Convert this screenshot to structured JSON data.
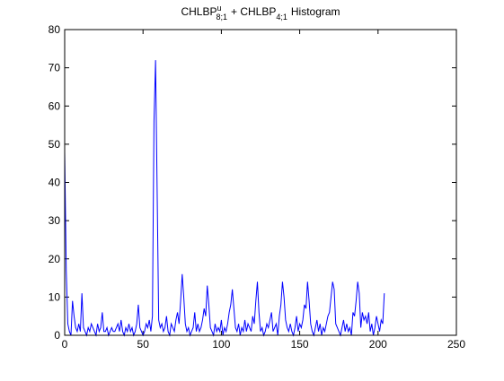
{
  "chart_data": {
    "type": "line",
    "title": [
      "CHLBP",
      "u",
      "8;1",
      "+ CHLBP",
      "4;1",
      "Histogram"
    ],
    "x": [
      0,
      1,
      2,
      3,
      4,
      5,
      6,
      7,
      8,
      9,
      10,
      11,
      12,
      13,
      14,
      15,
      16,
      17,
      18,
      19,
      20,
      21,
      22,
      23,
      24,
      25,
      26,
      27,
      28,
      29,
      30,
      31,
      32,
      33,
      34,
      35,
      36,
      37,
      38,
      39,
      40,
      41,
      42,
      43,
      44,
      45,
      46,
      47,
      48,
      49,
      50,
      51,
      52,
      53,
      54,
      55,
      56,
      57,
      58,
      59,
      60,
      61,
      62,
      63,
      64,
      65,
      66,
      67,
      68,
      69,
      70,
      71,
      72,
      73,
      74,
      75,
      76,
      77,
      78,
      79,
      80,
      81,
      82,
      83,
      84,
      85,
      86,
      87,
      88,
      89,
      90,
      91,
      92,
      93,
      94,
      95,
      96,
      97,
      98,
      99,
      100,
      101,
      102,
      103,
      104,
      105,
      106,
      107,
      108,
      109,
      110,
      111,
      112,
      113,
      114,
      115,
      116,
      117,
      118,
      119,
      120,
      121,
      122,
      123,
      124,
      125,
      126,
      127,
      128,
      129,
      130,
      131,
      132,
      133,
      134,
      135,
      136,
      137,
      138,
      139,
      140,
      141,
      142,
      143,
      144,
      145,
      146,
      147,
      148,
      149,
      150,
      151,
      152,
      153,
      154,
      155,
      156,
      157,
      158,
      159,
      160,
      161,
      162,
      163,
      164,
      165,
      166,
      167,
      168,
      169,
      170,
      171,
      172,
      173,
      174,
      175,
      176,
      177,
      178,
      179,
      180,
      181,
      182,
      183,
      184,
      185,
      186,
      187,
      188,
      189,
      190,
      191,
      192,
      193,
      194,
      195,
      196,
      197,
      198,
      199,
      200,
      201,
      202,
      203,
      204
    ],
    "series": [
      {
        "color": "#0000ff",
        "values": [
          48,
          17,
          3,
          1,
          0,
          9,
          5,
          2,
          1,
          3,
          1,
          11,
          2,
          1,
          0,
          2,
          1,
          3,
          2,
          1,
          0,
          3,
          1,
          2,
          6,
          1,
          1,
          2,
          0,
          1,
          2,
          1,
          1,
          2,
          3,
          1,
          4,
          1,
          0,
          2,
          1,
          3,
          1,
          2,
          0,
          1,
          3,
          8,
          2,
          1,
          0,
          1,
          3,
          2,
          4,
          1,
          5,
          56,
          72,
          38,
          4,
          2,
          3,
          1,
          2,
          5,
          1,
          0,
          3,
          2,
          1,
          4,
          6,
          3,
          9,
          16,
          10,
          3,
          1,
          2,
          0,
          1,
          2,
          6,
          1,
          3,
          1,
          2,
          4,
          7,
          5,
          13,
          8,
          2,
          1,
          0,
          3,
          1,
          2,
          1,
          4,
          0,
          2,
          1,
          3,
          6,
          8,
          12,
          7,
          2,
          1,
          3,
          0,
          2,
          1,
          4,
          1,
          3,
          2,
          1,
          5,
          3,
          9,
          14,
          6,
          1,
          2,
          0,
          1,
          3,
          2,
          4,
          6,
          1,
          2,
          3,
          0,
          5,
          8,
          14,
          10,
          4,
          2,
          1,
          3,
          1,
          0,
          2,
          5,
          1,
          3,
          2,
          4,
          8,
          7,
          14,
          9,
          3,
          1,
          0,
          2,
          4,
          1,
          3,
          0,
          2,
          1,
          3,
          5,
          6,
          10,
          14,
          12,
          3,
          2,
          1,
          0,
          2,
          4,
          1,
          3,
          1,
          2,
          0,
          6,
          5,
          9,
          14,
          11,
          2,
          6,
          4,
          5,
          3,
          6,
          1,
          3,
          0,
          2,
          5,
          3,
          1,
          4,
          3,
          11
        ]
      }
    ],
    "xlim": [
      0,
      250
    ],
    "xticks": [
      0,
      50,
      100,
      150,
      200,
      250
    ],
    "ylim": [
      0,
      80
    ],
    "yticks": [
      0,
      10,
      20,
      30,
      40,
      50,
      60,
      70,
      80
    ]
  }
}
